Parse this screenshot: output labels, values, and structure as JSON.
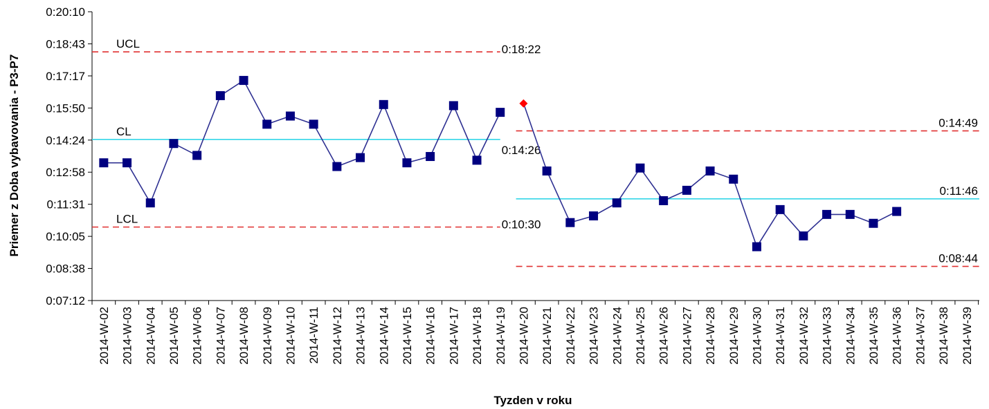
{
  "chart_data": {
    "type": "line",
    "title": "",
    "xlabel": "Tyzden v roku",
    "ylabel": "Priemer z Doba vybavovania - P3-P7",
    "y_ticks": [
      "0:07:12",
      "0:08:38",
      "0:10:05",
      "0:11:31",
      "0:12:58",
      "0:14:24",
      "0:15:50",
      "0:17:17",
      "0:18:43",
      "0:20:10"
    ],
    "ylim_seconds": [
      432,
      1210
    ],
    "categories": [
      "2014-W-02",
      "2014-W-03",
      "2014-W-04",
      "2014-W-05",
      "2014-W-06",
      "2014-W-07",
      "2014-W-08",
      "2014-W-09",
      "2014-W-10",
      "2014-W-11",
      "2014-W-12",
      "2014-W-13",
      "2014-W-14",
      "2014-W-15",
      "2014-W-16",
      "2014-W-17",
      "2014-W-18",
      "2014-W-19",
      "2014-W-20",
      "2014-W-21",
      "2014-W-22",
      "2014-W-23",
      "2014-W-24",
      "2014-W-25",
      "2014-W-26",
      "2014-W-27",
      "2014-W-28",
      "2014-W-29",
      "2014-W-30",
      "2014-W-31",
      "2014-W-32",
      "2014-W-33",
      "2014-W-34",
      "2014-W-35",
      "2014-W-36",
      "2014-W-37",
      "2014-W-38",
      "2014-W-39"
    ],
    "phases": [
      {
        "categories": [
          "2014-W-02",
          "2014-W-03",
          "2014-W-04",
          "2014-W-05",
          "2014-W-06",
          "2014-W-07",
          "2014-W-08",
          "2014-W-09",
          "2014-W-10",
          "2014-W-11",
          "2014-W-12",
          "2014-W-13",
          "2014-W-14",
          "2014-W-15",
          "2014-W-16",
          "2014-W-17",
          "2014-W-18",
          "2014-W-19"
        ],
        "values_seconds": [
          803,
          803,
          695,
          855,
          823,
          984,
          1025,
          907,
          929,
          907,
          793,
          817,
          960,
          803,
          820,
          957,
          810,
          939
        ],
        "ucl": {
          "label": "UCL",
          "value_label": "0:18:22",
          "seconds": 1102
        },
        "cl": {
          "label": "CL",
          "value_label": "0:14:26",
          "seconds": 866
        },
        "lcl": {
          "label": "LCL",
          "value_label": "0:10:30",
          "seconds": 630
        }
      },
      {
        "categories": [
          "2014-W-20",
          "2014-W-21",
          "2014-W-22",
          "2014-W-23",
          "2014-W-24",
          "2014-W-25",
          "2014-W-26",
          "2014-W-27",
          "2014-W-28",
          "2014-W-29",
          "2014-W-30",
          "2014-W-31",
          "2014-W-32",
          "2014-W-33",
          "2014-W-34",
          "2014-W-35",
          "2014-W-36"
        ],
        "values_seconds": [
          963,
          781,
          642,
          660,
          695,
          789,
          701,
          729,
          781,
          759,
          577,
          677,
          606,
          664,
          664,
          640,
          672
        ],
        "ucl": {
          "value_label": "0:14:49",
          "seconds": 889
        },
        "cl": {
          "value_label": "0:11:46",
          "seconds": 706
        },
        "lcl": {
          "value_label": "0:08:44",
          "seconds": 524
        }
      }
    ],
    "colors": {
      "series": "#2f3192",
      "marker": "#000080",
      "highlight_marker": "#ff0000",
      "cl_line": "#33d6e8",
      "limit_line": "#e03030",
      "axis": "#000000"
    },
    "grid": false,
    "legend": "none"
  }
}
